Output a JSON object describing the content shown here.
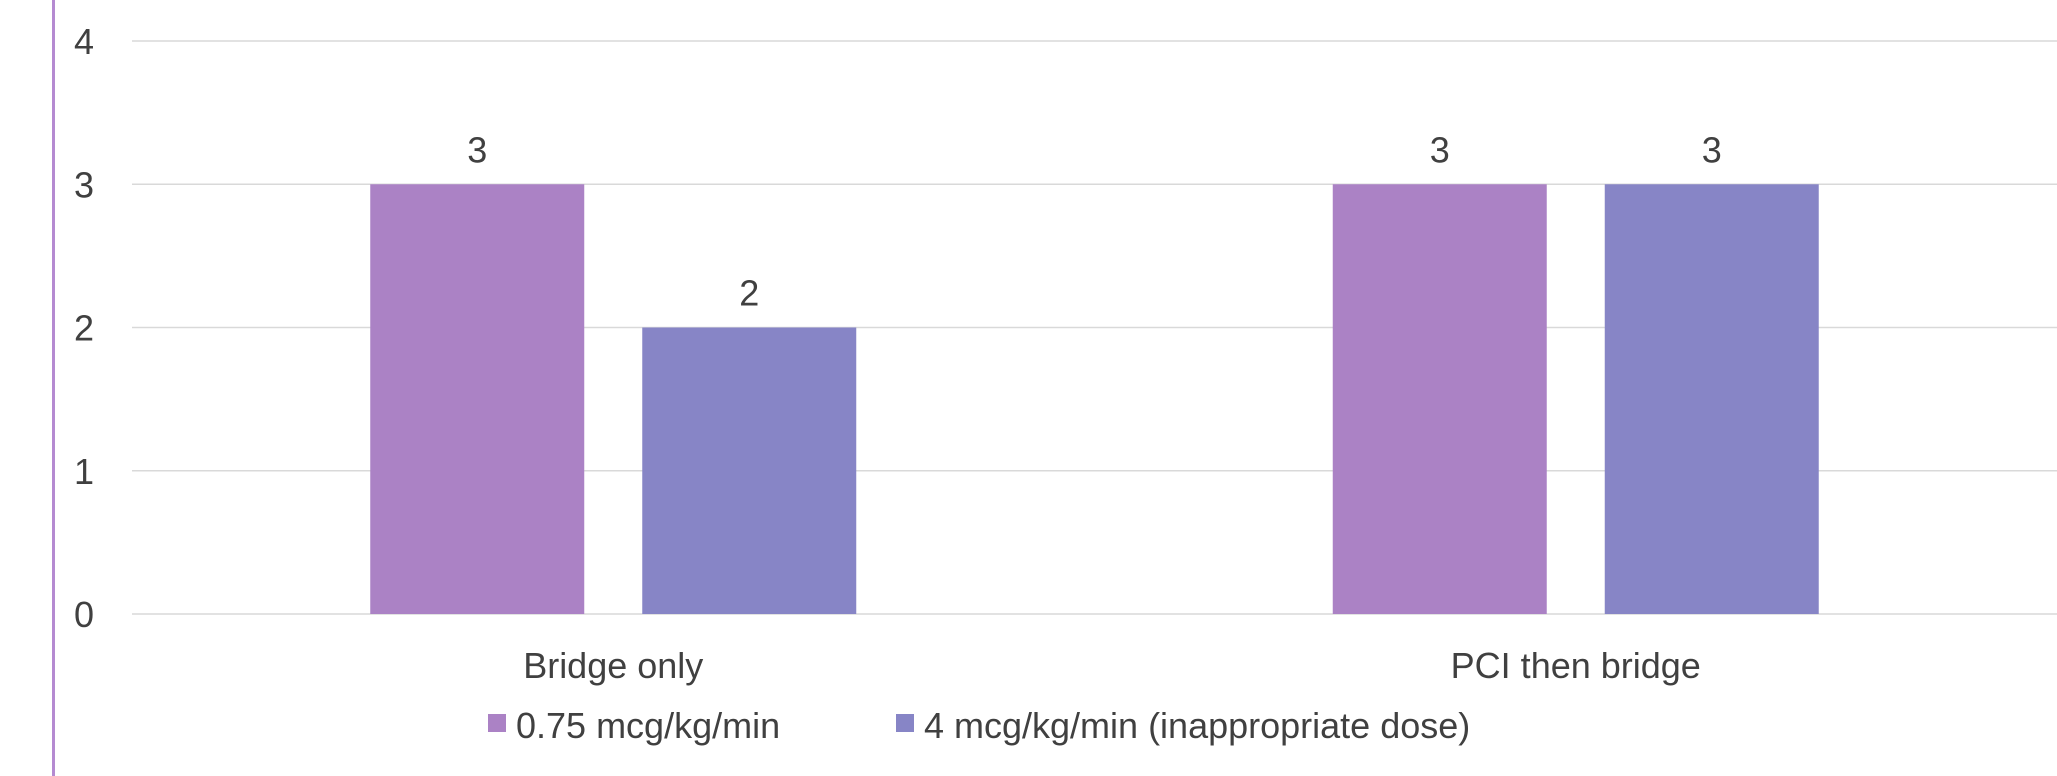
{
  "page": {
    "title_visible": ""
  },
  "chart_data": {
    "type": "bar",
    "title": "",
    "xlabel": "",
    "ylabel": "",
    "categories": [
      "Bridge only",
      "PCI then bridge"
    ],
    "series": [
      {
        "name": "0.75 mcg/kg/min",
        "values": [
          3,
          3
        ],
        "color": "#ab82c5"
      },
      {
        "name": "4 mcg/kg/min (inappropriate dose)",
        "values": [
          2,
          3
        ],
        "color": "#8785c6"
      }
    ],
    "ylim": [
      0,
      4
    ],
    "yticks": [
      0,
      1,
      2,
      3,
      4
    ],
    "grid": true,
    "data_labels": true,
    "legend_position": "bottom"
  }
}
